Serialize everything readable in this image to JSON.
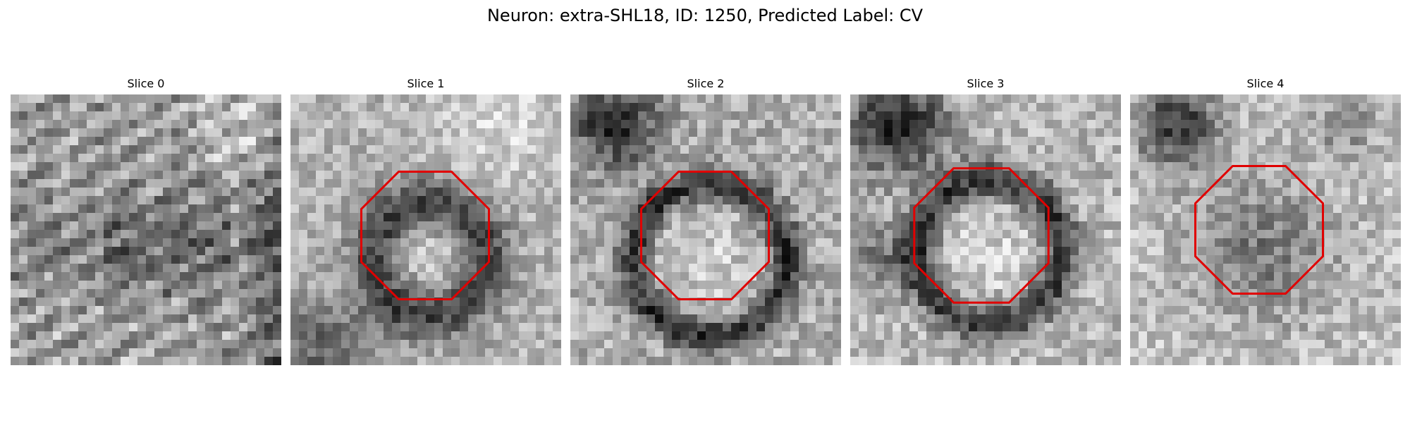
{
  "figure": {
    "title": "Neuron: extra-SHL18, ID: 1250, Predicted Label: CV",
    "outline_color": "#e00000"
  },
  "panels": [
    {
      "title": "Slice 0",
      "has_outline": false
    },
    {
      "title": "Slice 1",
      "has_outline": true
    },
    {
      "title": "Slice 2",
      "has_outline": true
    },
    {
      "title": "Slice 3",
      "has_outline": true
    },
    {
      "title": "Slice 4",
      "has_outline": true
    }
  ]
}
